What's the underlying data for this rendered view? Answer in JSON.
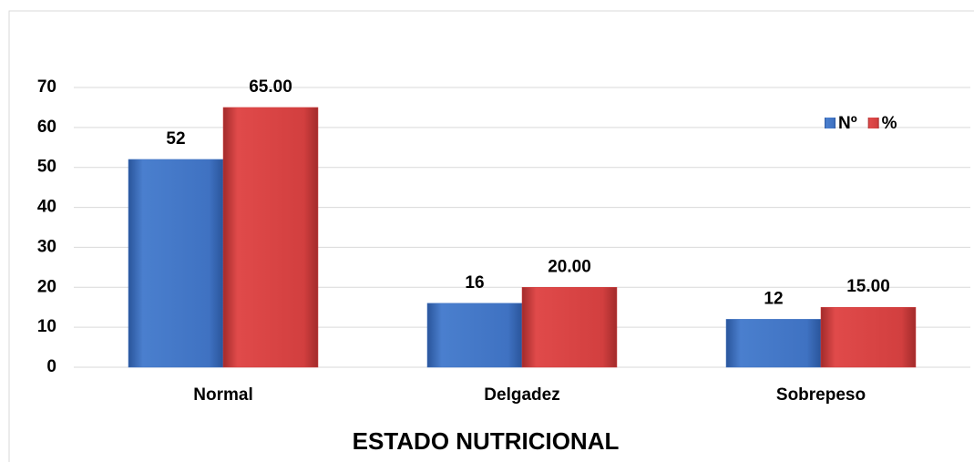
{
  "chart_data": {
    "type": "bar",
    "categories": [
      "Normal",
      "Delgadez",
      "Sobrepeso"
    ],
    "series": [
      {
        "name": "Nº",
        "color": "#3f72c2",
        "values": [
          52,
          16,
          12
        ]
      },
      {
        "name": "%",
        "color": "#d23f3f",
        "values": [
          65,
          20,
          15
        ],
        "value_labels": [
          "65.00",
          "20.00",
          "15.00"
        ]
      }
    ],
    "x_label": "ESTADO NUTRICIONAL",
    "ylim": [
      0,
      70
    ],
    "yticks": [
      0,
      10,
      20,
      30,
      40,
      50,
      60,
      70
    ],
    "grid": true,
    "legend": "top-right"
  }
}
